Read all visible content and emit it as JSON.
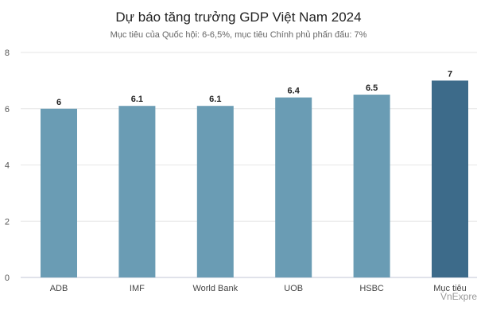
{
  "chart_data": {
    "type": "bar",
    "title": "Dự báo tăng trưởng GDP Việt Nam 2024",
    "subtitle": "Mục tiêu của Quốc hội: 6-6,5%, mục tiêu Chính phủ phấn đấu: 7%",
    "categories": [
      "ADB",
      "IMF",
      "World Bank",
      "UOB",
      "HSBC",
      "Mục tiêu"
    ],
    "values": [
      6,
      6.1,
      6.1,
      6.4,
      6.5,
      7
    ],
    "data_labels": [
      "6",
      "6.1",
      "6.1",
      "6.4",
      "6.5",
      "7"
    ],
    "yticks": [
      "0",
      "2",
      "4",
      "6",
      "8"
    ],
    "ylim": [
      0,
      8
    ],
    "grid": true,
    "colors": {
      "bar": "#6a9cb4",
      "highlight_bar": "#3d6b8a",
      "grid": "#e6e6e6",
      "axis": "#c0c6d6"
    },
    "highlight_index": 5
  },
  "watermark": "VnExpress"
}
